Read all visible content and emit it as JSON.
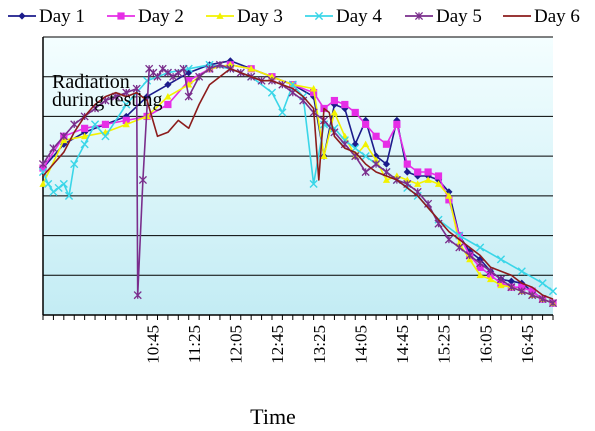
{
  "chart_data": {
    "type": "line",
    "title": "",
    "xlabel": "Time",
    "ylabel": "",
    "annotation": "Radiation during testing",
    "annotation_lines": [
      "Radiation",
      "during testing"
    ],
    "x_tick_labels": [
      "10:45",
      "11:25",
      "12:05",
      "12:45",
      "13:25",
      "14:05",
      "14:45",
      "15:25",
      "16:05",
      "16:45"
    ],
    "x_tick_positions_min": [
      645,
      685,
      725,
      765,
      805,
      845,
      885,
      925,
      965,
      1005
    ],
    "xlim_min": [
      540,
      1030
    ],
    "ylim": [
      0,
      7
    ],
    "y_gridlines": [
      1,
      2,
      3,
      4,
      5,
      6,
      7
    ],
    "grid": true,
    "legend_position": "top",
    "colors": {
      "plot_gradient_top": "#f4feff",
      "plot_gradient_bottom": "#c3ecf4",
      "gridline": "#000000"
    },
    "series": [
      {
        "name": "Day 1",
        "color": "#1c1c8c",
        "marker": "diamond",
        "x": [
          540,
          560,
          580,
          600,
          620,
          640,
          660,
          680,
          700,
          720,
          740,
          760,
          780,
          800,
          810,
          820,
          830,
          840,
          850,
          860,
          870,
          880,
          890,
          900,
          910,
          920,
          930,
          940,
          950,
          960,
          970,
          980,
          990,
          1000,
          1010,
          1020,
          1030
        ],
        "y": [
          3.7,
          4.3,
          4.6,
          4.8,
          5.0,
          5.5,
          5.8,
          6.1,
          6.3,
          6.4,
          6.2,
          6.0,
          5.8,
          5.5,
          4.0,
          5.3,
          5.2,
          4.3,
          4.9,
          4.0,
          3.8,
          4.9,
          3.6,
          3.5,
          3.5,
          3.4,
          3.1,
          2.0,
          1.6,
          1.4,
          1.1,
          0.9,
          0.85,
          0.8,
          0.6,
          0.4,
          0.3
        ]
      },
      {
        "name": "Day 2",
        "color": "#e62ee6",
        "marker": "square",
        "x": [
          540,
          560,
          580,
          600,
          620,
          640,
          660,
          680,
          700,
          720,
          740,
          760,
          780,
          800,
          810,
          820,
          830,
          840,
          850,
          860,
          870,
          880,
          890,
          900,
          910,
          920,
          930,
          940,
          950,
          960,
          970,
          980,
          990,
          1000,
          1010,
          1020,
          1030
        ],
        "y": [
          3.7,
          4.5,
          4.7,
          4.8,
          4.9,
          5.0,
          5.3,
          5.9,
          6.2,
          6.3,
          6.2,
          6.0,
          5.8,
          5.6,
          5.2,
          5.4,
          5.3,
          5.1,
          4.8,
          4.5,
          4.3,
          4.8,
          3.8,
          3.6,
          3.6,
          3.5,
          2.9,
          2.0,
          1.5,
          1.2,
          1.0,
          0.8,
          0.7,
          0.7,
          0.6,
          0.4,
          0.3
        ]
      },
      {
        "name": "Day 3",
        "color": "#f2f200",
        "marker": "triangle",
        "x": [
          540,
          560,
          580,
          600,
          620,
          640,
          660,
          680,
          700,
          720,
          740,
          760,
          780,
          800,
          810,
          820,
          830,
          840,
          850,
          860,
          870,
          880,
          890,
          900,
          910,
          920,
          930,
          940,
          950,
          960,
          970,
          980,
          990,
          1000,
          1010,
          1020,
          1030
        ],
        "y": [
          3.3,
          4.4,
          4.5,
          4.6,
          4.8,
          5.0,
          5.5,
          5.8,
          6.2,
          6.3,
          6.2,
          6.0,
          5.8,
          5.7,
          4.0,
          5.1,
          4.5,
          4.0,
          4.3,
          3.9,
          3.4,
          3.5,
          3.4,
          3.3,
          3.4,
          3.3,
          3.0,
          1.8,
          1.4,
          1.0,
          0.9,
          0.75,
          0.7,
          0.6,
          0.5,
          0.4,
          0.3
        ]
      },
      {
        "name": "Day 4",
        "color": "#3ad6e8",
        "marker": "x",
        "x": [
          540,
          545,
          550,
          555,
          560,
          565,
          570,
          580,
          590,
          600,
          620,
          640,
          660,
          680,
          700,
          720,
          740,
          760,
          770,
          780,
          790,
          800,
          810,
          820,
          830,
          840,
          850,
          860,
          870,
          880,
          890,
          900,
          920,
          940,
          960,
          980,
          1000,
          1020,
          1030
        ],
        "y": [
          3.6,
          3.3,
          3.1,
          3.2,
          3.3,
          3.0,
          3.8,
          4.3,
          4.8,
          4.5,
          5.3,
          5.9,
          6.1,
          6.2,
          6.3,
          6.2,
          6.0,
          5.6,
          5.1,
          5.8,
          5.5,
          3.3,
          4.8,
          4.7,
          4.4,
          4.2,
          4.0,
          3.8,
          3.6,
          3.4,
          3.2,
          3.0,
          2.4,
          2.0,
          1.7,
          1.4,
          1.1,
          0.8,
          0.6
        ]
      },
      {
        "name": "Day 5",
        "color": "#7a2e8c",
        "marker": "asterisk",
        "x": [
          540,
          550,
          560,
          570,
          580,
          590,
          600,
          610,
          620,
          630,
          631,
          636,
          642,
          646,
          650,
          655,
          660,
          665,
          670,
          675,
          680,
          690,
          700,
          710,
          720,
          730,
          740,
          750,
          760,
          770,
          780,
          790,
          800,
          810,
          820,
          830,
          840,
          850,
          860,
          870,
          880,
          890,
          900,
          910,
          920,
          930,
          940,
          950,
          960,
          970,
          980,
          990,
          1000,
          1010,
          1020,
          1030
        ],
        "y": [
          3.8,
          4.2,
          4.5,
          4.8,
          5.0,
          5.2,
          5.4,
          5.5,
          5.6,
          5.7,
          0.5,
          3.4,
          6.2,
          6.1,
          6.0,
          6.2,
          6.1,
          6.0,
          6.1,
          6.2,
          5.5,
          6.0,
          6.2,
          6.3,
          6.2,
          6.1,
          6.0,
          5.9,
          5.9,
          5.8,
          5.6,
          5.4,
          5.1,
          4.9,
          4.6,
          4.3,
          4.0,
          3.6,
          3.8,
          3.6,
          3.4,
          3.3,
          3.1,
          2.8,
          2.3,
          1.9,
          1.7,
          1.5,
          1.3,
          1.1,
          0.9,
          0.7,
          0.6,
          0.5,
          0.4,
          0.3
        ]
      },
      {
        "name": "Day 6",
        "color": "#8c1c1c",
        "marker": "none",
        "x": [
          540,
          550,
          560,
          570,
          580,
          590,
          600,
          610,
          620,
          630,
          640,
          650,
          660,
          670,
          680,
          690,
          700,
          710,
          720,
          730,
          740,
          750,
          760,
          770,
          780,
          790,
          800,
          805,
          810,
          815,
          820,
          830,
          840,
          850,
          860,
          870,
          880,
          890,
          900,
          910,
          920,
          930,
          940,
          950,
          960,
          970,
          980,
          990,
          1000,
          1010,
          1020,
          1030
        ],
        "y": [
          3.5,
          3.8,
          4.1,
          4.6,
          5.0,
          5.3,
          5.5,
          5.6,
          5.5,
          5.6,
          5.4,
          4.5,
          4.6,
          4.9,
          4.7,
          5.3,
          5.8,
          6.0,
          6.2,
          6.1,
          6.0,
          5.9,
          5.9,
          5.8,
          5.7,
          5.5,
          5.2,
          3.4,
          5.2,
          5.1,
          4.5,
          4.2,
          4.1,
          3.8,
          3.6,
          3.5,
          3.4,
          3.2,
          3.0,
          2.7,
          2.4,
          2.1,
          1.9,
          1.7,
          1.5,
          1.2,
          1.1,
          1.0,
          0.8,
          0.7,
          0.5,
          0.4
        ]
      }
    ]
  }
}
